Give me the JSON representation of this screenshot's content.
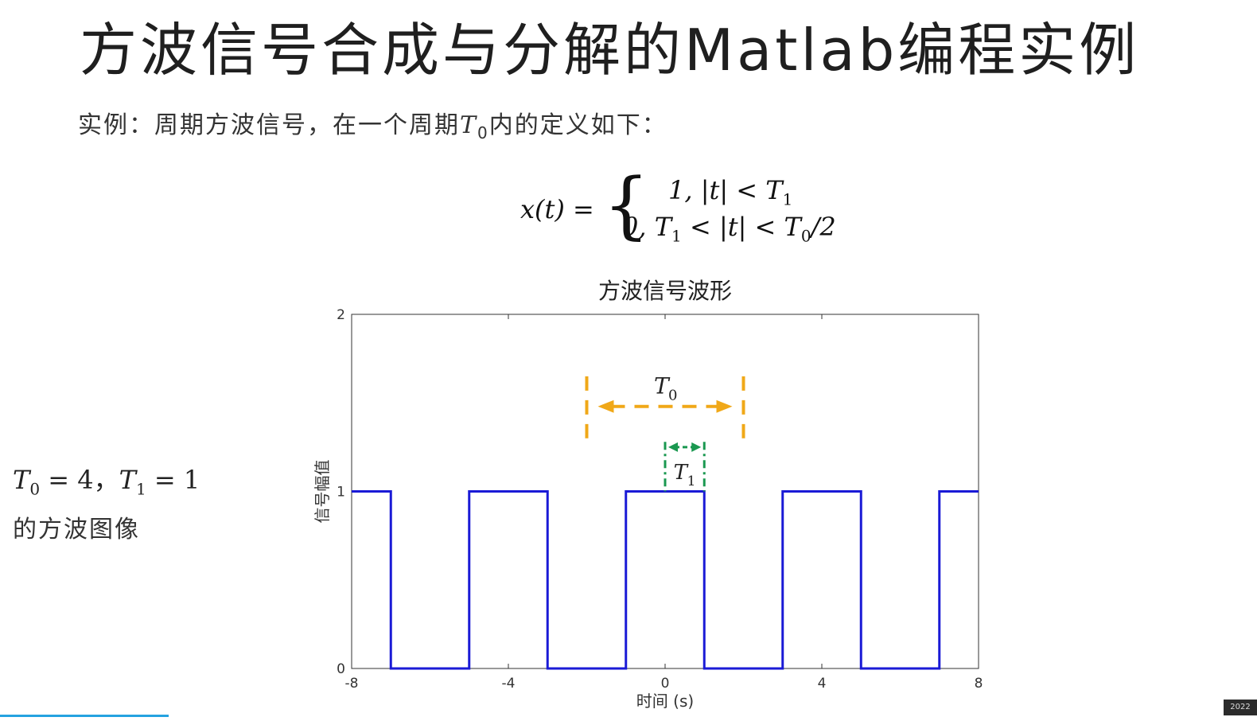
{
  "slide": {
    "title": "方波信号合成与分解的Matlab编程实例",
    "intro_before": "实例：周期方波信号，在一个周期",
    "intro_T": "T",
    "intro_T_sub": "0",
    "intro_after": "内的定义如下：",
    "formula": {
      "lhs": "x(t) =",
      "case1": "1, |t| < T",
      "case1_sub": "1",
      "case2_a": "0, T",
      "case2_a_sub": "1",
      "case2_b": " < |t| < T",
      "case2_b_sub": "0",
      "case2_c": "/2"
    },
    "side_note": {
      "t0": "T",
      "t0_sub": "0",
      "t0_val": " = 4，",
      "t1": "T",
      "t1_sub": "1",
      "t1_val": " = 1"
    },
    "side_caption": "的方波图像",
    "corner_badge": "2022"
  },
  "chart_data": {
    "type": "line",
    "title": "方波信号波形",
    "xlabel": "时间 (s)",
    "ylabel": "信号幅值",
    "xlim": [
      -8,
      8
    ],
    "ylim": [
      0,
      2
    ],
    "xticks": [
      -8,
      -4,
      0,
      4,
      8
    ],
    "xtick_labels": [
      "-8",
      "-4",
      "0",
      "4",
      "8"
    ],
    "yticks": [
      0,
      1,
      2
    ],
    "ytick_labels": [
      "0",
      "1",
      "2"
    ],
    "grid": false,
    "series": [
      {
        "color": "#1a1ad6",
        "x": [
          -8,
          -7,
          -7,
          -5,
          -5,
          -3,
          -3,
          -1,
          -1,
          1,
          1,
          3,
          3,
          5,
          5,
          7,
          7,
          8
        ],
        "y": [
          1,
          1,
          0,
          0,
          1,
          1,
          0,
          0,
          1,
          1,
          0,
          0,
          1,
          1,
          0,
          0,
          1,
          1
        ]
      }
    ],
    "annotations": {
      "T0": {
        "label": "T",
        "label_sub": "0",
        "x_from": -2,
        "x_to": 2,
        "y": 1.48,
        "y_range": [
          1.3,
          1.65
        ],
        "color": "#f0a818"
      },
      "T1": {
        "label": "T",
        "label_sub": "1",
        "x_from": 0,
        "x_to": 1,
        "y": 1.25,
        "y_range": [
          1.0,
          1.28
        ],
        "color": "#1a9850"
      }
    }
  }
}
